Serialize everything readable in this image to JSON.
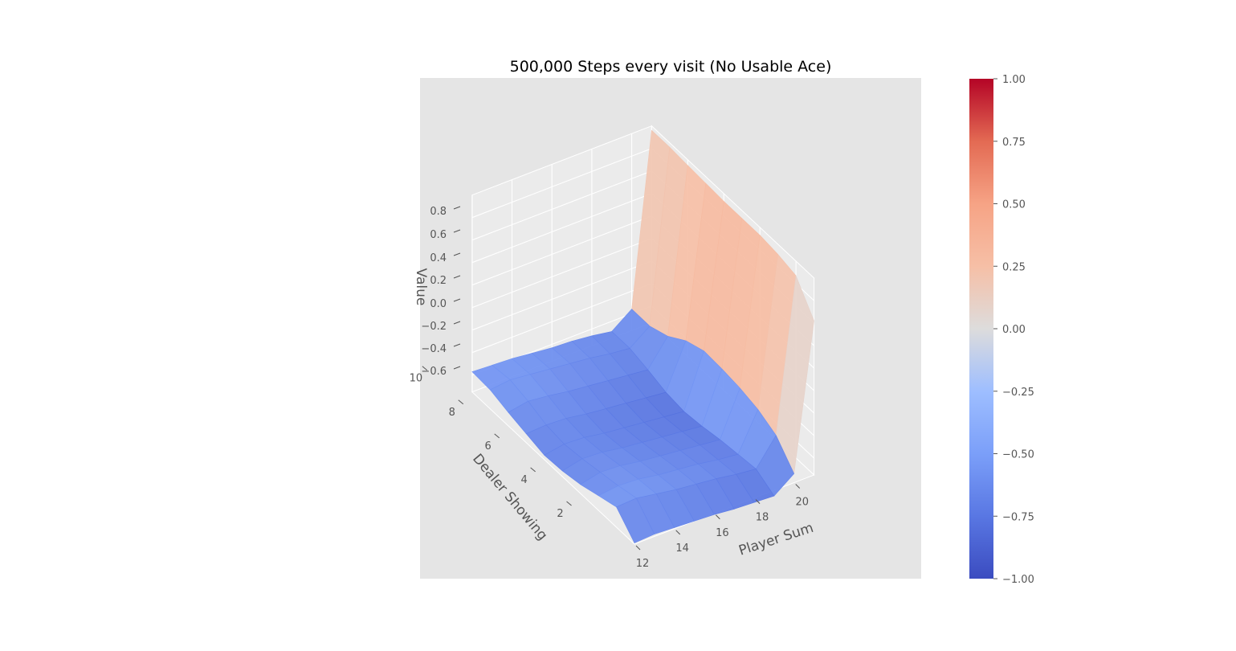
{
  "chart_data": {
    "type": "surface3d",
    "title": "500,000 Steps every visit (No Usable Ace)",
    "xlabel": "Player Sum",
    "ylabel": "Dealer Showing",
    "zlabel": "Value",
    "x": [
      12,
      13,
      14,
      15,
      16,
      17,
      18,
      19,
      20,
      21
    ],
    "y": [
      1,
      2,
      3,
      4,
      5,
      6,
      7,
      8,
      9,
      10
    ],
    "x_ticks": [
      "12",
      "14",
      "16",
      "18",
      "20"
    ],
    "y_ticks": [
      "2",
      "4",
      "6",
      "8",
      "10"
    ],
    "z_ticks": [
      "−0.6",
      "−0.4",
      "−0.2",
      "0.0",
      "0.2",
      "0.4",
      "0.6",
      "0.8"
    ],
    "z_values": [
      [
        -0.74,
        -0.57,
        -0.62,
        -0.67,
        -0.7,
        -0.71,
        -0.67,
        -0.63,
        -0.58,
        -0.57
      ],
      [
        -0.73,
        -0.56,
        -0.6,
        -0.63,
        -0.66,
        -0.68,
        -0.66,
        -0.6,
        -0.56,
        -0.58
      ],
      [
        -0.74,
        -0.59,
        -0.61,
        -0.64,
        -0.67,
        -0.69,
        -0.67,
        -0.62,
        -0.58,
        -0.59
      ],
      [
        -0.75,
        -0.62,
        -0.64,
        -0.67,
        -0.7,
        -0.72,
        -0.7,
        -0.65,
        -0.6,
        -0.61
      ],
      [
        -0.76,
        -0.64,
        -0.66,
        -0.69,
        -0.72,
        -0.74,
        -0.72,
        -0.67,
        -0.62,
        -0.63
      ],
      [
        -0.78,
        -0.66,
        -0.68,
        -0.71,
        -0.74,
        -0.76,
        -0.74,
        -0.69,
        -0.64,
        -0.64
      ],
      [
        -0.79,
        -0.69,
        -0.71,
        -0.73,
        -0.76,
        -0.78,
        -0.76,
        -0.71,
        -0.67,
        -0.66
      ],
      [
        -0.8,
        -0.71,
        -0.73,
        -0.75,
        -0.78,
        -0.8,
        -0.78,
        -0.73,
        -0.69,
        -0.69
      ],
      [
        -0.67,
        -0.48,
        -0.4,
        -0.36,
        -0.34,
        -0.33,
        -0.39,
        -0.5,
        -0.56,
        -0.56
      ],
      [
        0.62,
        0.87,
        0.91,
        0.93,
        0.93,
        0.93,
        0.94,
        0.95,
        0.96,
        0.96
      ]
    ],
    "zlim": [
      -1.0,
      1.0
    ],
    "colormap": "coolwarm",
    "colorbar": {
      "range": [
        -1.0,
        1.0
      ],
      "ticks": [
        "−1.00",
        "−0.75",
        "−0.50",
        "−0.25",
        "0.00",
        "0.25",
        "0.50",
        "0.75",
        "1.00"
      ]
    },
    "grid": true,
    "colors": {
      "background": "#e5e5e5",
      "low": "#3b4cc0",
      "mid": "#dddcdc",
      "high": "#b40426"
    }
  }
}
